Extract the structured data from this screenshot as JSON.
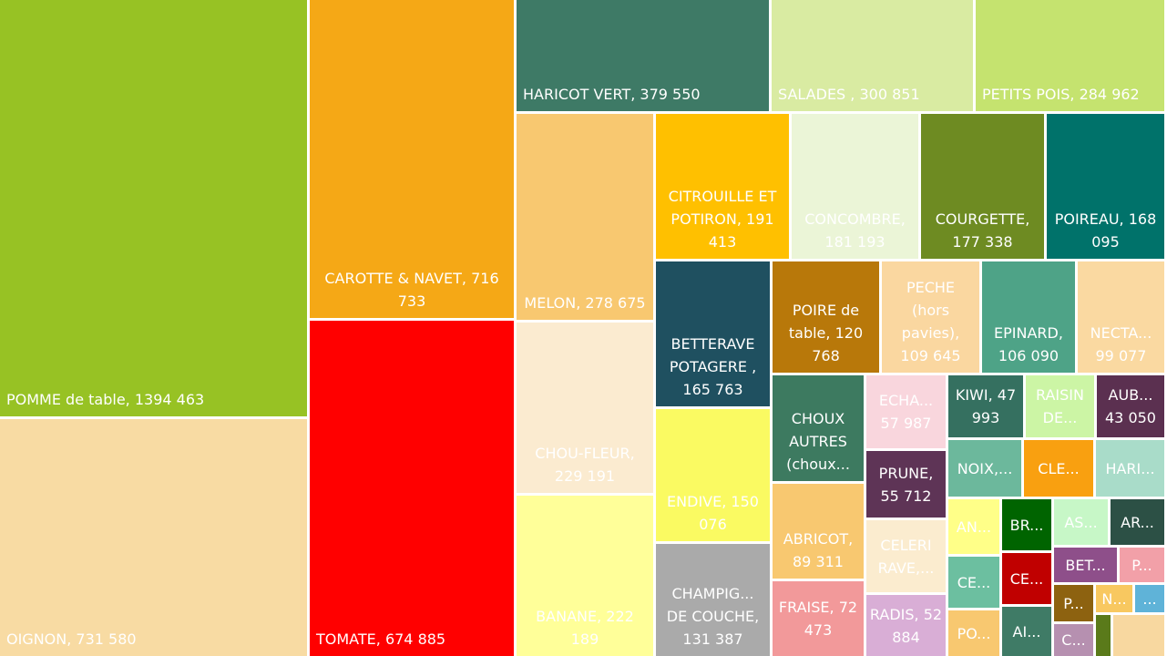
{
  "chart_data": {
    "type": "treemap",
    "categories": [
      "POMME de table,",
      "OIGNON,",
      "CAROTTE & NAVET,",
      "TOMATE,",
      "HARICOT VERT,",
      "SALADES ,",
      "PETITS POIS,",
      "MELON,",
      "CHOU-FLEUR,",
      "BANANE,",
      "CITROUILLE ET POTIRON,",
      "CONCOMBRE,",
      "COURGETTE,",
      "POIREAU,",
      "BETTERAVE POTAGERE ,",
      "ENDIVE,",
      "CHAMPIG... DE COUCHE,",
      "POIRE de table,",
      "PECHE (hors pavies),",
      "EPINARD,",
      "NECTA...",
      "CHOUX AUTRES (choux...",
      "ABRICOT,",
      "FRAISE,",
      "ECHA...",
      "PRUNE,",
      "CELERI RAVE,...",
      "RADIS,",
      "KIWI,",
      "RAISIN DE...",
      "AUB...",
      "NOIX,...",
      "CLE...",
      "HARI...",
      "AN...",
      "BR...",
      "AS...",
      "AR...",
      "CE...",
      "CE...",
      "BET...",
      "P...",
      "PO...",
      "AI...",
      "P...",
      "N...",
      "...",
      "C...",
      null,
      null
    ],
    "values": [
      1394463,
      731580,
      716733,
      674885,
      379550,
      300851,
      284962,
      278675,
      229191,
      222189,
      191413,
      181193,
      177338,
      168095,
      165763,
      150076,
      131387,
      120768,
      109645,
      106090,
      99077,
      92000,
      89311,
      72473,
      57987,
      55712,
      53500,
      52884,
      47993,
      44000,
      43050,
      40000,
      38000,
      37000,
      27000,
      25000,
      24000,
      24000,
      25000,
      24000,
      21000,
      16000,
      22000,
      23000,
      14000,
      10000,
      8000,
      12000,
      6000,
      20000
    ],
    "value_labels": [
      "1394 463",
      "731 580",
      "716 733",
      "674 885",
      "379 550",
      "300 851",
      "284 962",
      "278 675",
      "229 191",
      "222 189",
      "191 413",
      "181 193",
      "177 338",
      "168 095",
      "165 763",
      "150 076",
      "131 387",
      "120 768",
      "109 645",
      "106 090",
      "99 077",
      null,
      "89 311",
      "72 473",
      "57 987",
      "55 712",
      null,
      "52 884",
      "47 993",
      null,
      "43 050",
      null,
      null,
      null,
      null,
      null,
      null,
      null,
      null,
      null,
      null,
      null,
      null,
      null,
      null,
      null,
      null,
      null,
      null,
      null
    ],
    "colors": [
      "#97c224",
      "#f8dba3",
      "#f5a816",
      "#ff0000",
      "#3e7a66",
      "#d9eba2",
      "#c5e36f",
      "#f8c870",
      "#fbebd0",
      "#ffff99",
      "#ffc000",
      "#ebf5d7",
      "#6e8b22",
      "#00726a",
      "#1f5060",
      "#fafa62",
      "#aaaaaa",
      "#b8780a",
      "#fad7a0",
      "#4ea387",
      "#fad9a1",
      "#3d7a60",
      "#f8c870",
      "#f2999a",
      "#f9d6dd",
      "#5e3456",
      "#fbeccf",
      "#d9aed6",
      "#357060",
      "#ccf5a5",
      "#5b3050",
      "#6cb89c",
      "#f9a010",
      "#a9dcc9",
      "#ffff88",
      "#006400",
      "#c7f7c7",
      "#2c5045",
      "#6cbfa0",
      "#c00000",
      "#8e4f8a",
      "#f2a0a8",
      "#f8c870",
      "#3f7b66",
      "#8d6210",
      "#f8c860",
      "#5fb3d8",
      "#b690b0",
      "#5a7a1a",
      "#f8d8a0"
    ]
  }
}
